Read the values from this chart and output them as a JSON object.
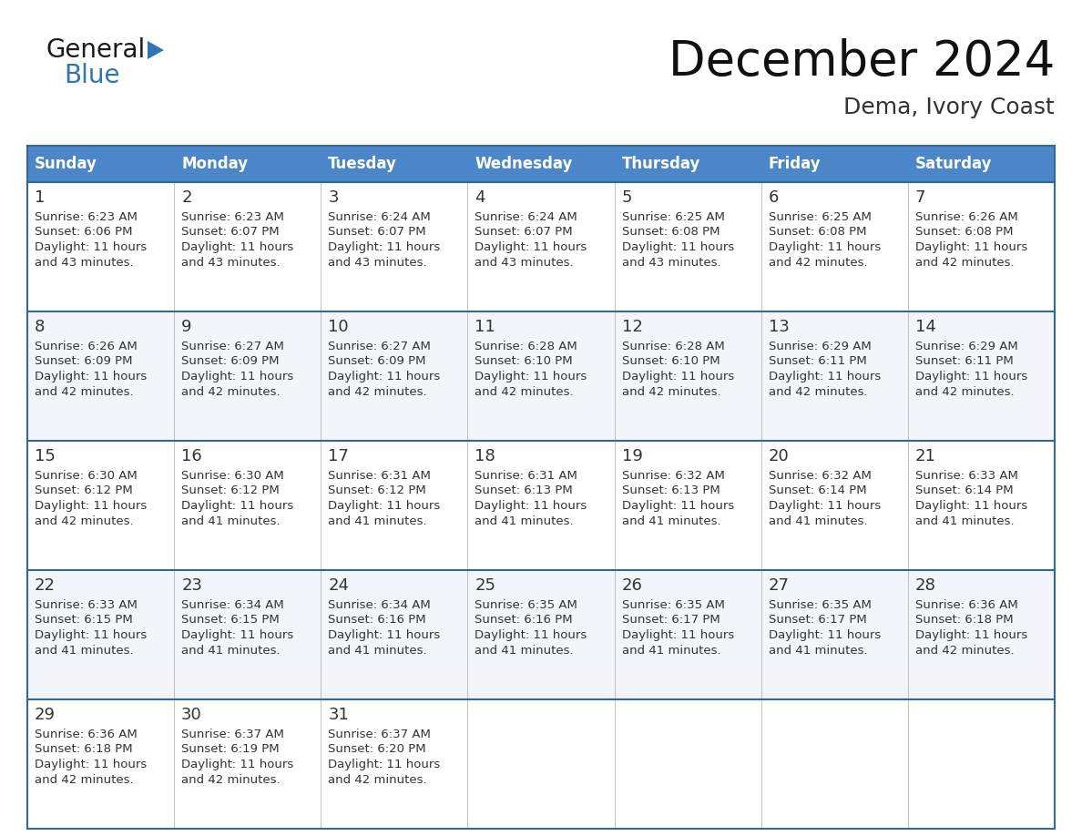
{
  "title": "December 2024",
  "subtitle": "Dema, Ivory Coast",
  "days_of_week": [
    "Sunday",
    "Monday",
    "Tuesday",
    "Wednesday",
    "Thursday",
    "Friday",
    "Saturday"
  ],
  "header_bg": "#4a86c8",
  "header_text": "#ffffff",
  "cell_bg_odd": "#f2f5f9",
  "cell_bg_even": "#ffffff",
  "day_num_color": "#333333",
  "info_text_color": "#333333",
  "border_color": "#336699",
  "grid_color": "#aaaaaa",
  "logo_general_color": "#1a1a1a",
  "logo_blue_color": "#2e75b6",
  "title_color": "#111111",
  "subtitle_color": "#333333",
  "calendar_data": [
    [
      {
        "day": 1,
        "sunrise": "6:23 AM",
        "sunset": "6:06 PM",
        "daylight": "11 hours and 43 minutes."
      },
      {
        "day": 2,
        "sunrise": "6:23 AM",
        "sunset": "6:07 PM",
        "daylight": "11 hours and 43 minutes."
      },
      {
        "day": 3,
        "sunrise": "6:24 AM",
        "sunset": "6:07 PM",
        "daylight": "11 hours and 43 minutes."
      },
      {
        "day": 4,
        "sunrise": "6:24 AM",
        "sunset": "6:07 PM",
        "daylight": "11 hours and 43 minutes."
      },
      {
        "day": 5,
        "sunrise": "6:25 AM",
        "sunset": "6:08 PM",
        "daylight": "11 hours and 43 minutes."
      },
      {
        "day": 6,
        "sunrise": "6:25 AM",
        "sunset": "6:08 PM",
        "daylight": "11 hours and 42 minutes."
      },
      {
        "day": 7,
        "sunrise": "6:26 AM",
        "sunset": "6:08 PM",
        "daylight": "11 hours and 42 minutes."
      }
    ],
    [
      {
        "day": 8,
        "sunrise": "6:26 AM",
        "sunset": "6:09 PM",
        "daylight": "11 hours and 42 minutes."
      },
      {
        "day": 9,
        "sunrise": "6:27 AM",
        "sunset": "6:09 PM",
        "daylight": "11 hours and 42 minutes."
      },
      {
        "day": 10,
        "sunrise": "6:27 AM",
        "sunset": "6:09 PM",
        "daylight": "11 hours and 42 minutes."
      },
      {
        "day": 11,
        "sunrise": "6:28 AM",
        "sunset": "6:10 PM",
        "daylight": "11 hours and 42 minutes."
      },
      {
        "day": 12,
        "sunrise": "6:28 AM",
        "sunset": "6:10 PM",
        "daylight": "11 hours and 42 minutes."
      },
      {
        "day": 13,
        "sunrise": "6:29 AM",
        "sunset": "6:11 PM",
        "daylight": "11 hours and 42 minutes."
      },
      {
        "day": 14,
        "sunrise": "6:29 AM",
        "sunset": "6:11 PM",
        "daylight": "11 hours and 42 minutes."
      }
    ],
    [
      {
        "day": 15,
        "sunrise": "6:30 AM",
        "sunset": "6:12 PM",
        "daylight": "11 hours and 42 minutes."
      },
      {
        "day": 16,
        "sunrise": "6:30 AM",
        "sunset": "6:12 PM",
        "daylight": "11 hours and 41 minutes."
      },
      {
        "day": 17,
        "sunrise": "6:31 AM",
        "sunset": "6:12 PM",
        "daylight": "11 hours and 41 minutes."
      },
      {
        "day": 18,
        "sunrise": "6:31 AM",
        "sunset": "6:13 PM",
        "daylight": "11 hours and 41 minutes."
      },
      {
        "day": 19,
        "sunrise": "6:32 AM",
        "sunset": "6:13 PM",
        "daylight": "11 hours and 41 minutes."
      },
      {
        "day": 20,
        "sunrise": "6:32 AM",
        "sunset": "6:14 PM",
        "daylight": "11 hours and 41 minutes."
      },
      {
        "day": 21,
        "sunrise": "6:33 AM",
        "sunset": "6:14 PM",
        "daylight": "11 hours and 41 minutes."
      }
    ],
    [
      {
        "day": 22,
        "sunrise": "6:33 AM",
        "sunset": "6:15 PM",
        "daylight": "11 hours and 41 minutes."
      },
      {
        "day": 23,
        "sunrise": "6:34 AM",
        "sunset": "6:15 PM",
        "daylight": "11 hours and 41 minutes."
      },
      {
        "day": 24,
        "sunrise": "6:34 AM",
        "sunset": "6:16 PM",
        "daylight": "11 hours and 41 minutes."
      },
      {
        "day": 25,
        "sunrise": "6:35 AM",
        "sunset": "6:16 PM",
        "daylight": "11 hours and 41 minutes."
      },
      {
        "day": 26,
        "sunrise": "6:35 AM",
        "sunset": "6:17 PM",
        "daylight": "11 hours and 41 minutes."
      },
      {
        "day": 27,
        "sunrise": "6:35 AM",
        "sunset": "6:17 PM",
        "daylight": "11 hours and 41 minutes."
      },
      {
        "day": 28,
        "sunrise": "6:36 AM",
        "sunset": "6:18 PM",
        "daylight": "11 hours and 42 minutes."
      }
    ],
    [
      {
        "day": 29,
        "sunrise": "6:36 AM",
        "sunset": "6:18 PM",
        "daylight": "11 hours and 42 minutes."
      },
      {
        "day": 30,
        "sunrise": "6:37 AM",
        "sunset": "6:19 PM",
        "daylight": "11 hours and 42 minutes."
      },
      {
        "day": 31,
        "sunrise": "6:37 AM",
        "sunset": "6:20 PM",
        "daylight": "11 hours and 42 minutes."
      },
      null,
      null,
      null,
      null
    ]
  ]
}
